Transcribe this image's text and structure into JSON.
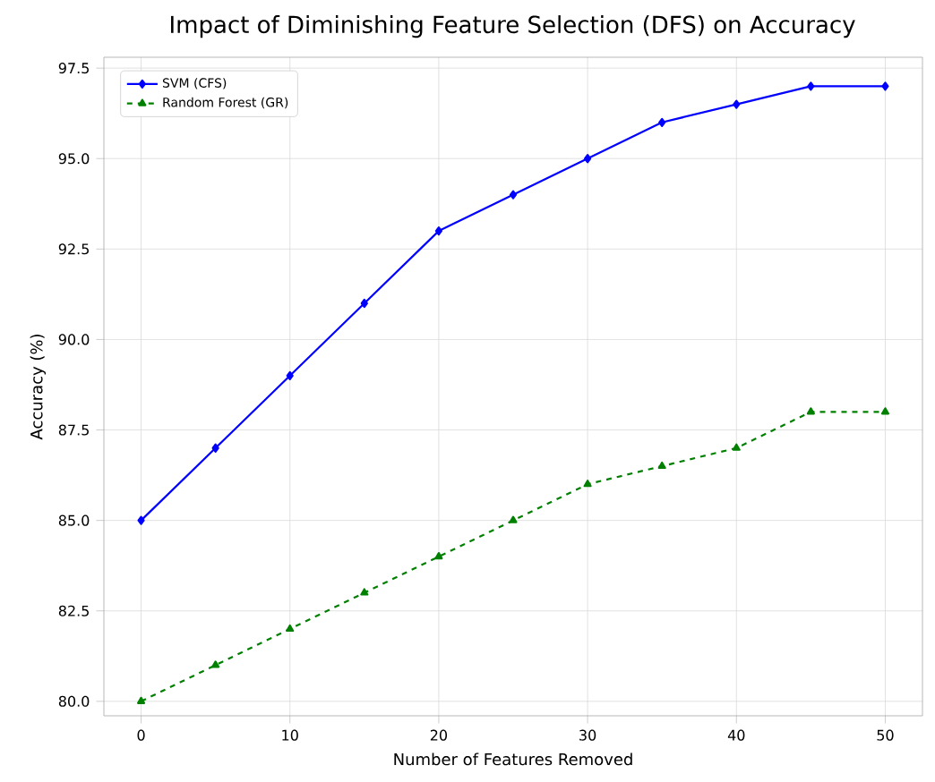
{
  "chart_data": {
    "type": "line",
    "title": "Impact of Diminishing Feature Selection (DFS) on Accuracy",
    "xlabel": "Number of Features Removed",
    "ylabel": "Accuracy (%)",
    "x": [
      0,
      5,
      10,
      15,
      20,
      25,
      30,
      35,
      40,
      45,
      50
    ],
    "series": [
      {
        "name": "SVM (CFS)",
        "color": "#0000ff",
        "marker": "diamond",
        "line_style": "solid",
        "values": [
          85,
          87,
          89,
          91,
          93,
          94,
          95,
          96,
          96.5,
          97,
          97
        ]
      },
      {
        "name": "Random Forest (GR)",
        "color": "#008000",
        "marker": "triangle",
        "line_style": "dashed",
        "values": [
          80,
          81,
          82,
          83,
          84,
          85,
          86,
          86.5,
          87,
          88,
          88
        ]
      }
    ],
    "xlim": [
      -2.5,
      52.5
    ],
    "ylim": [
      79.6,
      97.8
    ],
    "xticks": [
      0,
      10,
      20,
      30,
      40,
      50
    ],
    "yticks": [
      {
        "value": 80,
        "label": "80.0"
      },
      {
        "value": 82.5,
        "label": "82.5"
      },
      {
        "value": 85,
        "label": "85.0"
      },
      {
        "value": 87.5,
        "label": "87.5"
      },
      {
        "value": 90,
        "label": "90.0"
      },
      {
        "value": 92.5,
        "label": "92.5"
      },
      {
        "value": 95,
        "label": "95.0"
      },
      {
        "value": 97.5,
        "label": "97.5"
      }
    ],
    "grid": true,
    "legend": "top left"
  }
}
